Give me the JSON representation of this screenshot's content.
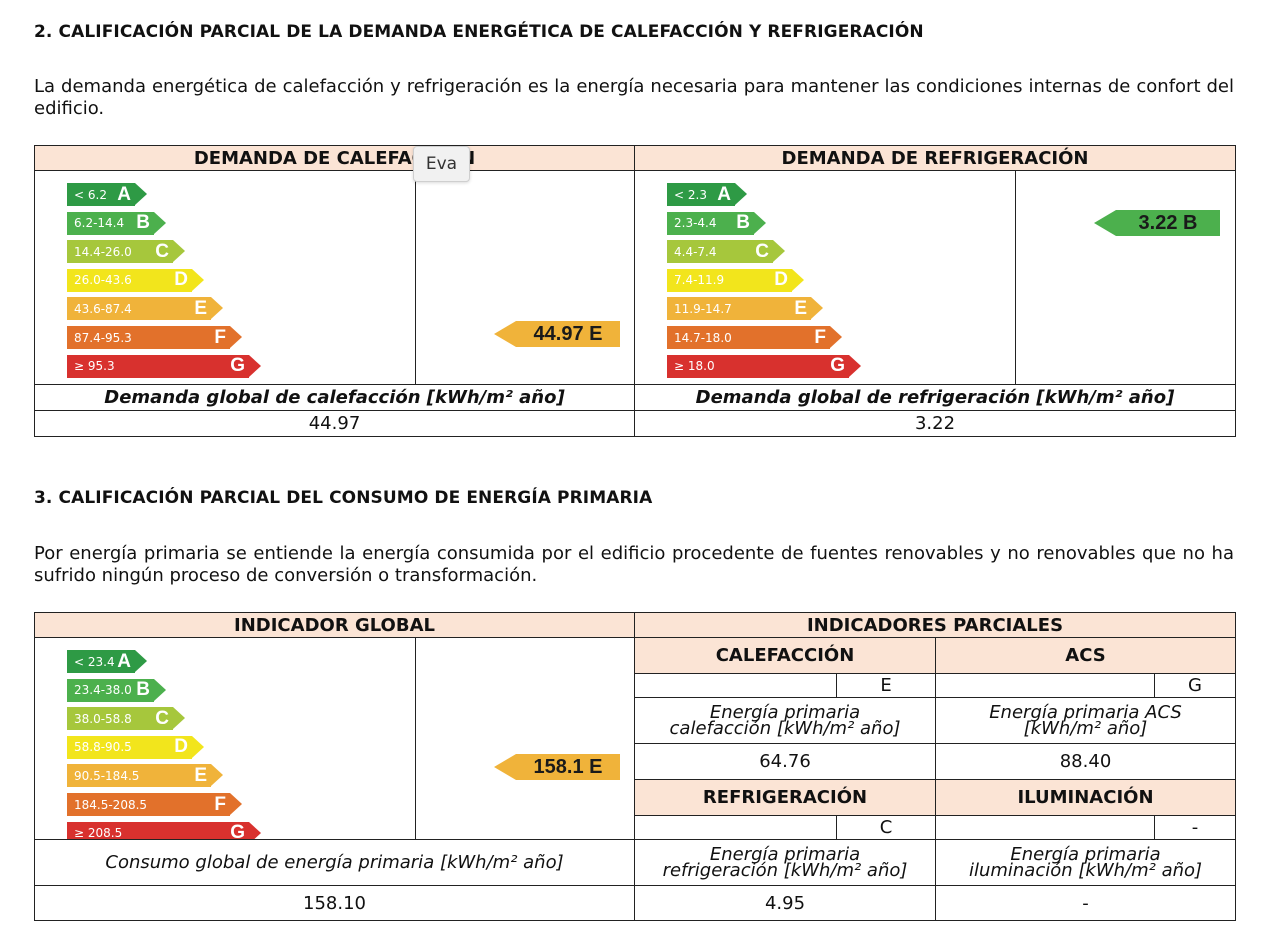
{
  "section2": {
    "heading": "2. CALIFICACIÓN PARCIAL DE LA DEMANDA ENERGÉTICA DE CALEFACCIÓN Y REFRIGERACIÓN",
    "intro": "La demanda energética de calefacción y refrigeración es la energía necesaria para mantener las condiciones internas de confort del edificio.",
    "heating": {
      "title": "DEMANDA DE CALEFACCIÓN",
      "scale": [
        {
          "range": "< 6.2",
          "letter": "A"
        },
        {
          "range": "6.2-14.4",
          "letter": "B"
        },
        {
          "range": "14.4-26.0",
          "letter": "C"
        },
        {
          "range": "26.0-43.6",
          "letter": "D"
        },
        {
          "range": "43.6-87.4",
          "letter": "E"
        },
        {
          "range": "87.4-95.3",
          "letter": "F"
        },
        {
          "range": "≥ 95.3",
          "letter": "G"
        }
      ],
      "indicator": "44.97 E",
      "global_label": "Demanda global de calefacción [kWh/m² año]",
      "global_value": "44.97"
    },
    "cooling": {
      "title": "DEMANDA DE REFRIGERACIÓN",
      "scale": [
        {
          "range": "< 2.3",
          "letter": "A"
        },
        {
          "range": "2.3-4.4",
          "letter": "B"
        },
        {
          "range": "4.4-7.4",
          "letter": "C"
        },
        {
          "range": "7.4-11.9",
          "letter": "D"
        },
        {
          "range": "11.9-14.7",
          "letter": "E"
        },
        {
          "range": "14.7-18.0",
          "letter": "F"
        },
        {
          "range": "≥ 18.0",
          "letter": "G"
        }
      ],
      "indicator": "3.22 B",
      "global_label": "Demanda global de refrigeración [kWh/m² año]",
      "global_value": "3.22"
    },
    "tooltip": "Eva"
  },
  "section3": {
    "heading": "3. CALIFICACIÓN PARCIAL DEL CONSUMO DE ENERGÍA PRIMARIA",
    "intro": "Por energía primaria se entiende la energía consumida por el edificio procedente de fuentes renovables y no renovables que no ha sufrido ningún proceso de conversión o transformación.",
    "global": {
      "title": "INDICADOR GLOBAL",
      "scale": [
        {
          "range": "< 23.4",
          "letter": "A"
        },
        {
          "range": "23.4-38.0",
          "letter": "B"
        },
        {
          "range": "38.0-58.8",
          "letter": "C"
        },
        {
          "range": "58.8-90.5",
          "letter": "D"
        },
        {
          "range": "90.5-184.5",
          "letter": "E"
        },
        {
          "range": "184.5-208.5",
          "letter": "F"
        },
        {
          "range": "≥ 208.5",
          "letter": "G"
        }
      ],
      "indicator": "158.1 E",
      "global_label": "Consumo global de energía primaria [kWh/m² año]",
      "global_value": "158.10"
    },
    "partial": {
      "title": "INDICADORES PARCIALES",
      "heating": {
        "title": "CALEFACCIÓN",
        "rating": "E",
        "label_1": "Energía primaria",
        "label_2": "calefacción [kWh/m² año]",
        "value": "64.76"
      },
      "acs": {
        "title": "ACS",
        "rating": "G",
        "label_1": "Energía primaria ACS",
        "label_2": "[kWh/m² año]",
        "value": "88.40"
      },
      "cooling": {
        "title": "REFRIGERACIÓN",
        "rating": "C",
        "label_1": "Energía primaria",
        "label_2": "refrigeración [kWh/m² año]",
        "value": "4.95"
      },
      "lighting": {
        "title": "ILUMINACIÓN",
        "rating": "-",
        "label_1": "Energía primaria",
        "label_2": "iluminación [kWh/m² año]",
        "value": "-"
      }
    }
  },
  "colors": {
    "A": "#2e9a45",
    "B": "#4cb04d",
    "C": "#a6c73c",
    "D": "#f2e51c",
    "E": "#f0b33a",
    "F": "#e2712b",
    "G": "#d8312e",
    "header_bg": "#fbe4d5"
  }
}
